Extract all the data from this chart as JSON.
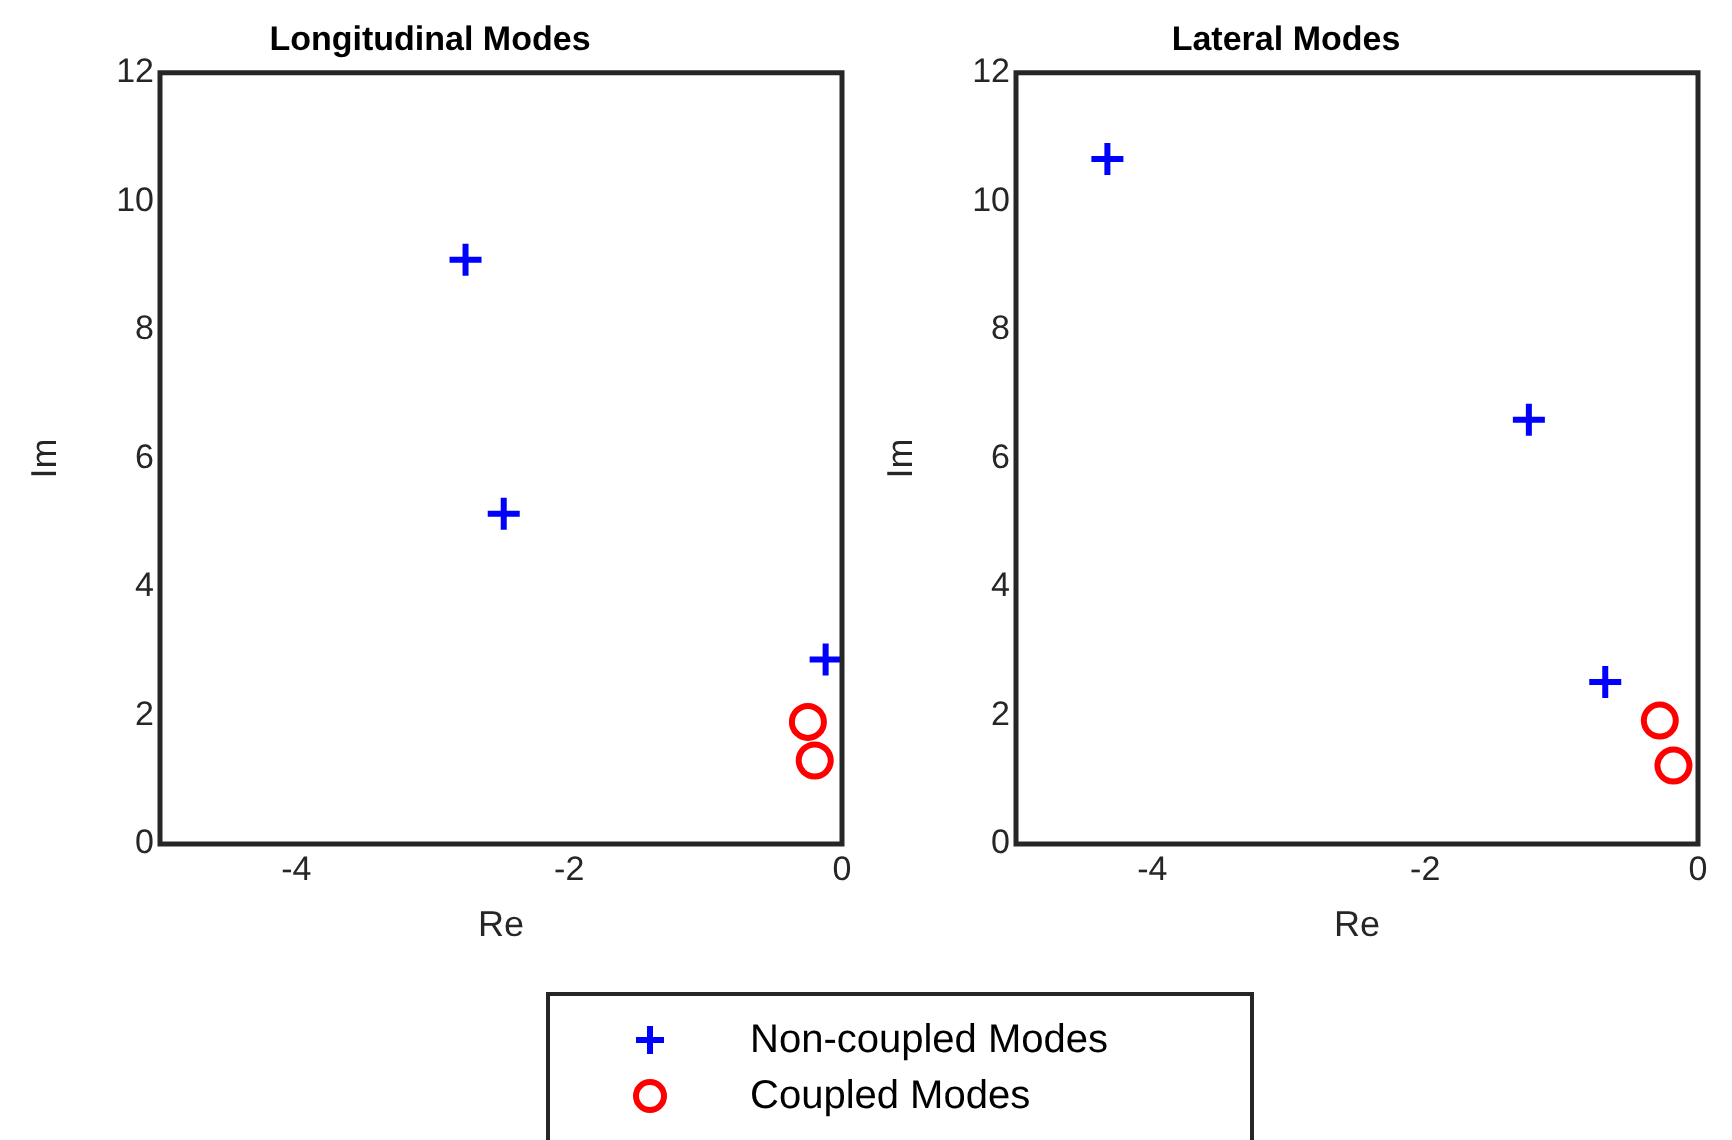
{
  "chart_data": [
    {
      "type": "scatter",
      "title": "Longitudinal Modes",
      "xlabel": "Re",
      "ylabel": "Im",
      "xlim": [
        -5,
        0
      ],
      "xticks": [
        -4,
        -2,
        0
      ],
      "ylim": [
        0,
        12
      ],
      "yticks": [
        0,
        2,
        4,
        6,
        8,
        10,
        12
      ],
      "legend": "bottom",
      "series": [
        {
          "name": "Non-coupled Modes",
          "color": "#0000ff",
          "marker": "cross",
          "x": [
            -2.76,
            -2.48,
            -0.12
          ],
          "values": [
            9.09,
            5.14,
            2.87
          ]
        },
        {
          "name": "Coupled Modes",
          "color": "#ff0000",
          "marker": "circle",
          "x": [
            -0.25,
            -0.2
          ],
          "values": [
            1.9,
            1.3
          ]
        }
      ]
    },
    {
      "type": "scatter",
      "title": "Lateral Modes",
      "xlabel": "Re",
      "ylabel": "Im",
      "xlim": [
        -5,
        0
      ],
      "xticks": [
        -4,
        -2,
        0
      ],
      "ylim": [
        0,
        12
      ],
      "yticks": [
        0,
        2,
        4,
        6,
        8,
        10,
        12
      ],
      "series": [
        {
          "color": "#0000ff",
          "marker": "cross",
          "x": [
            -4.33,
            -1.24,
            -0.68
          ],
          "values": [
            10.66,
            6.6,
            2.52
          ]
        },
        {
          "color": "#ff0000",
          "marker": "circle",
          "x": [
            -0.28,
            -0.18
          ],
          "values": [
            1.92,
            1.22
          ]
        }
      ]
    }
  ]
}
